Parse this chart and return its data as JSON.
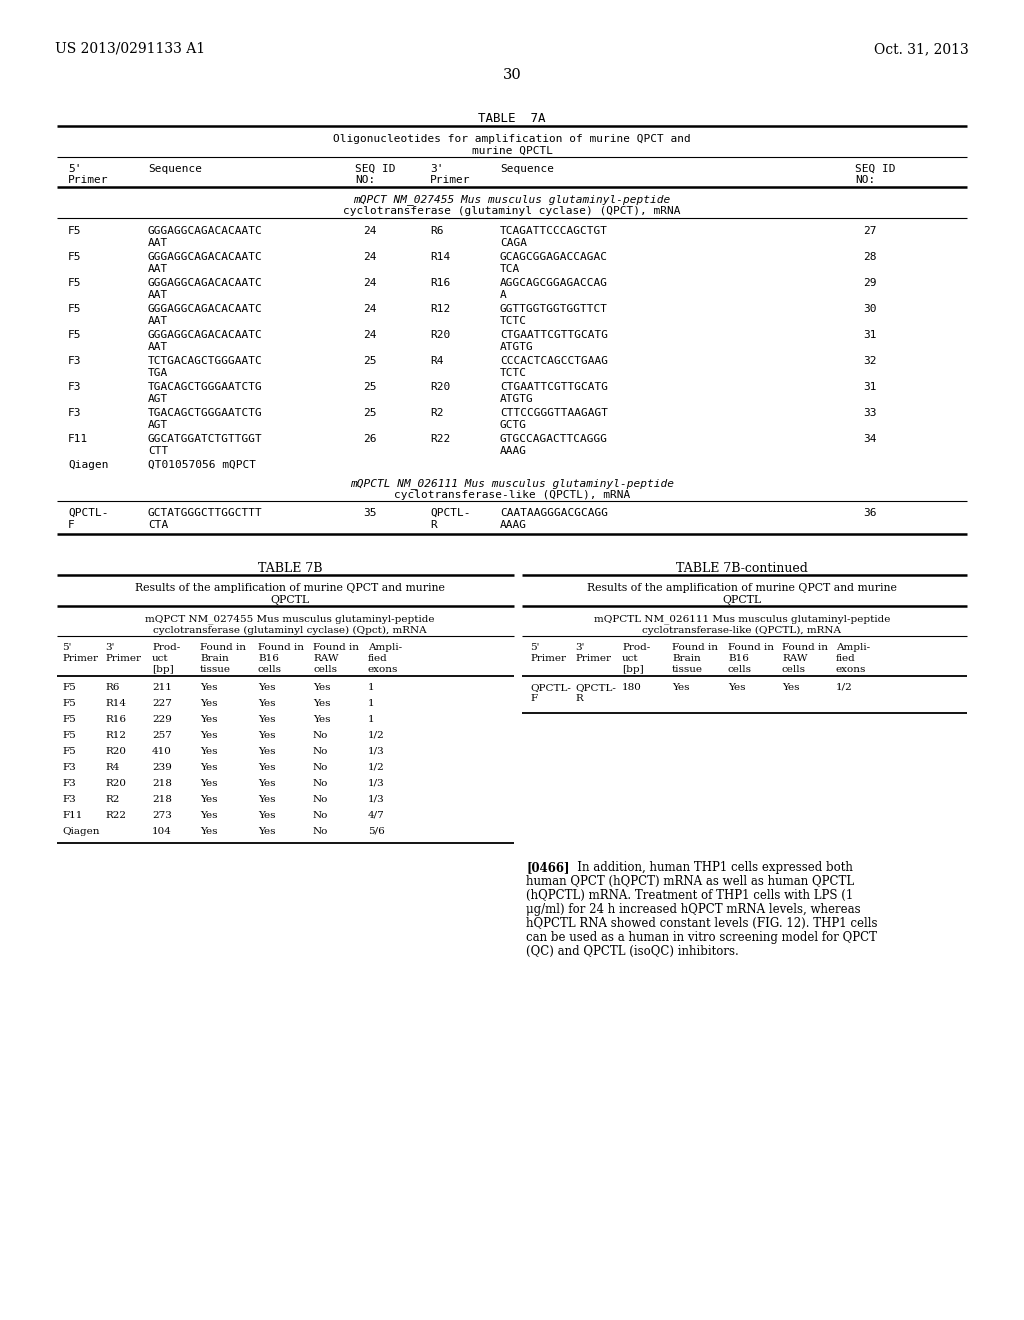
{
  "header_left": "US 2013/0291133 A1",
  "header_right": "Oct. 31, 2013",
  "page_number": "30",
  "bg_color": "#ffffff",
  "text_color": "#000000"
}
